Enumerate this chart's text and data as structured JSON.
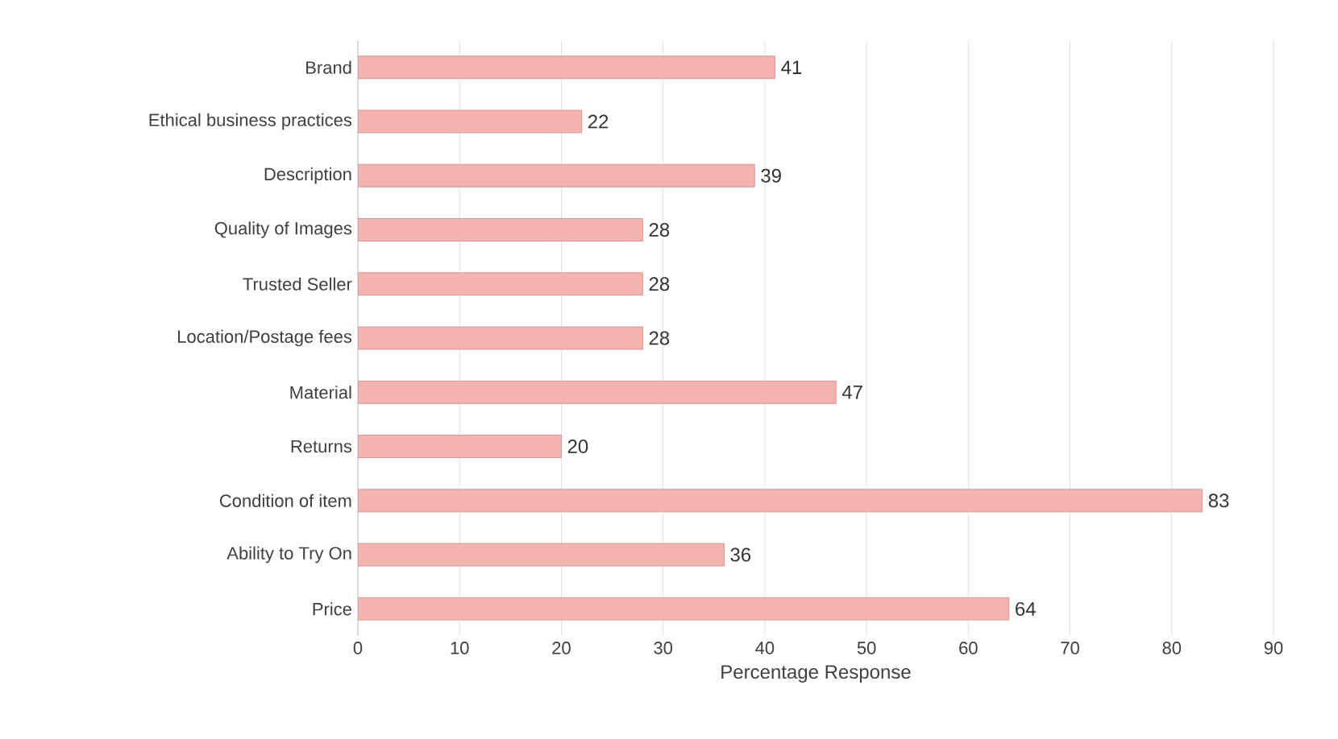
{
  "chart_data": {
    "type": "bar",
    "orientation": "horizontal",
    "xlabel": "Percentage Response",
    "categories": [
      "Brand",
      "Ethical business practices",
      "Description",
      "Quality of Images",
      "Trusted Seller",
      "Location/Postage fees",
      "Material",
      "Returns",
      "Condition of item",
      "Ability to Try On",
      "Price"
    ],
    "values": [
      41,
      22,
      39,
      28,
      28,
      28,
      47,
      20,
      83,
      36,
      64
    ],
    "color": "#f4b3ae",
    "xlim": [
      0,
      90
    ],
    "xticks": [
      0,
      10,
      20,
      30,
      40,
      50,
      60,
      70,
      80,
      90
    ],
    "grid": "x",
    "data_labels": true
  }
}
